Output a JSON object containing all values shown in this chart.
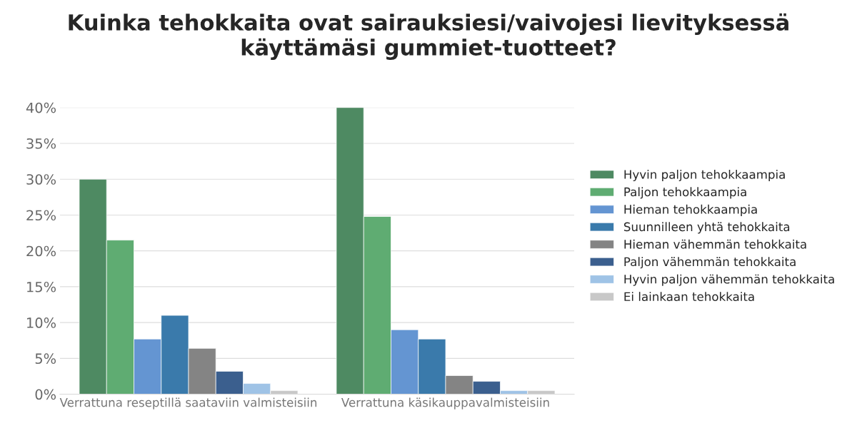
{
  "chart_data": {
    "type": "bar",
    "title": "Kuinka tehokkaita ovat sairauksiesi/vaivojesi lievityksessä käyttämäsi gummiet-tuotteet?",
    "categories": [
      "Verrattuna reseptillä saataviin valmisteisiin",
      "Verrattuna käsikauppavalmisteisiin"
    ],
    "series": [
      {
        "name": "Hyvin paljon tehokkaampia",
        "color": "#4e8a62",
        "values": [
          30.0,
          40.0
        ]
      },
      {
        "name": "Paljon tehokkaampia",
        "color": "#5fac72",
        "values": [
          21.5,
          24.8
        ]
      },
      {
        "name": "Hieman tehokkaampia",
        "color": "#6495d2",
        "values": [
          7.7,
          9.0
        ]
      },
      {
        "name": "Suunnilleen yhtä tehokkaita",
        "color": "#3a7aab",
        "values": [
          11.0,
          7.7
        ]
      },
      {
        "name": "Hieman vähemmän tehokkaita",
        "color": "#848484",
        "values": [
          6.4,
          2.6
        ]
      },
      {
        "name": "Paljon vähemmän tehokkaita",
        "color": "#3b5f8e",
        "values": [
          3.2,
          1.8
        ]
      },
      {
        "name": "Hyvin paljon vähemmän tehokkaita",
        "color": "#9fc3e6",
        "values": [
          1.5,
          0.5
        ]
      },
      {
        "name": "Ei lainkaan tehokkaita",
        "color": "#c8c8c8",
        "values": [
          0.5,
          0.5
        ]
      }
    ],
    "ylim": [
      0,
      40
    ],
    "yticks": [
      {
        "value": 0,
        "label": "0%"
      },
      {
        "value": 5,
        "label": "5%"
      },
      {
        "value": 10,
        "label": "10%"
      },
      {
        "value": 15,
        "label": "15%"
      },
      {
        "value": 20,
        "label": "20%"
      },
      {
        "value": 25,
        "label": "25%"
      },
      {
        "value": 30,
        "label": "30%"
      },
      {
        "value": 35,
        "label": "35%"
      },
      {
        "value": 40,
        "label": "40%"
      }
    ],
    "grid": "y",
    "legend": "right"
  }
}
